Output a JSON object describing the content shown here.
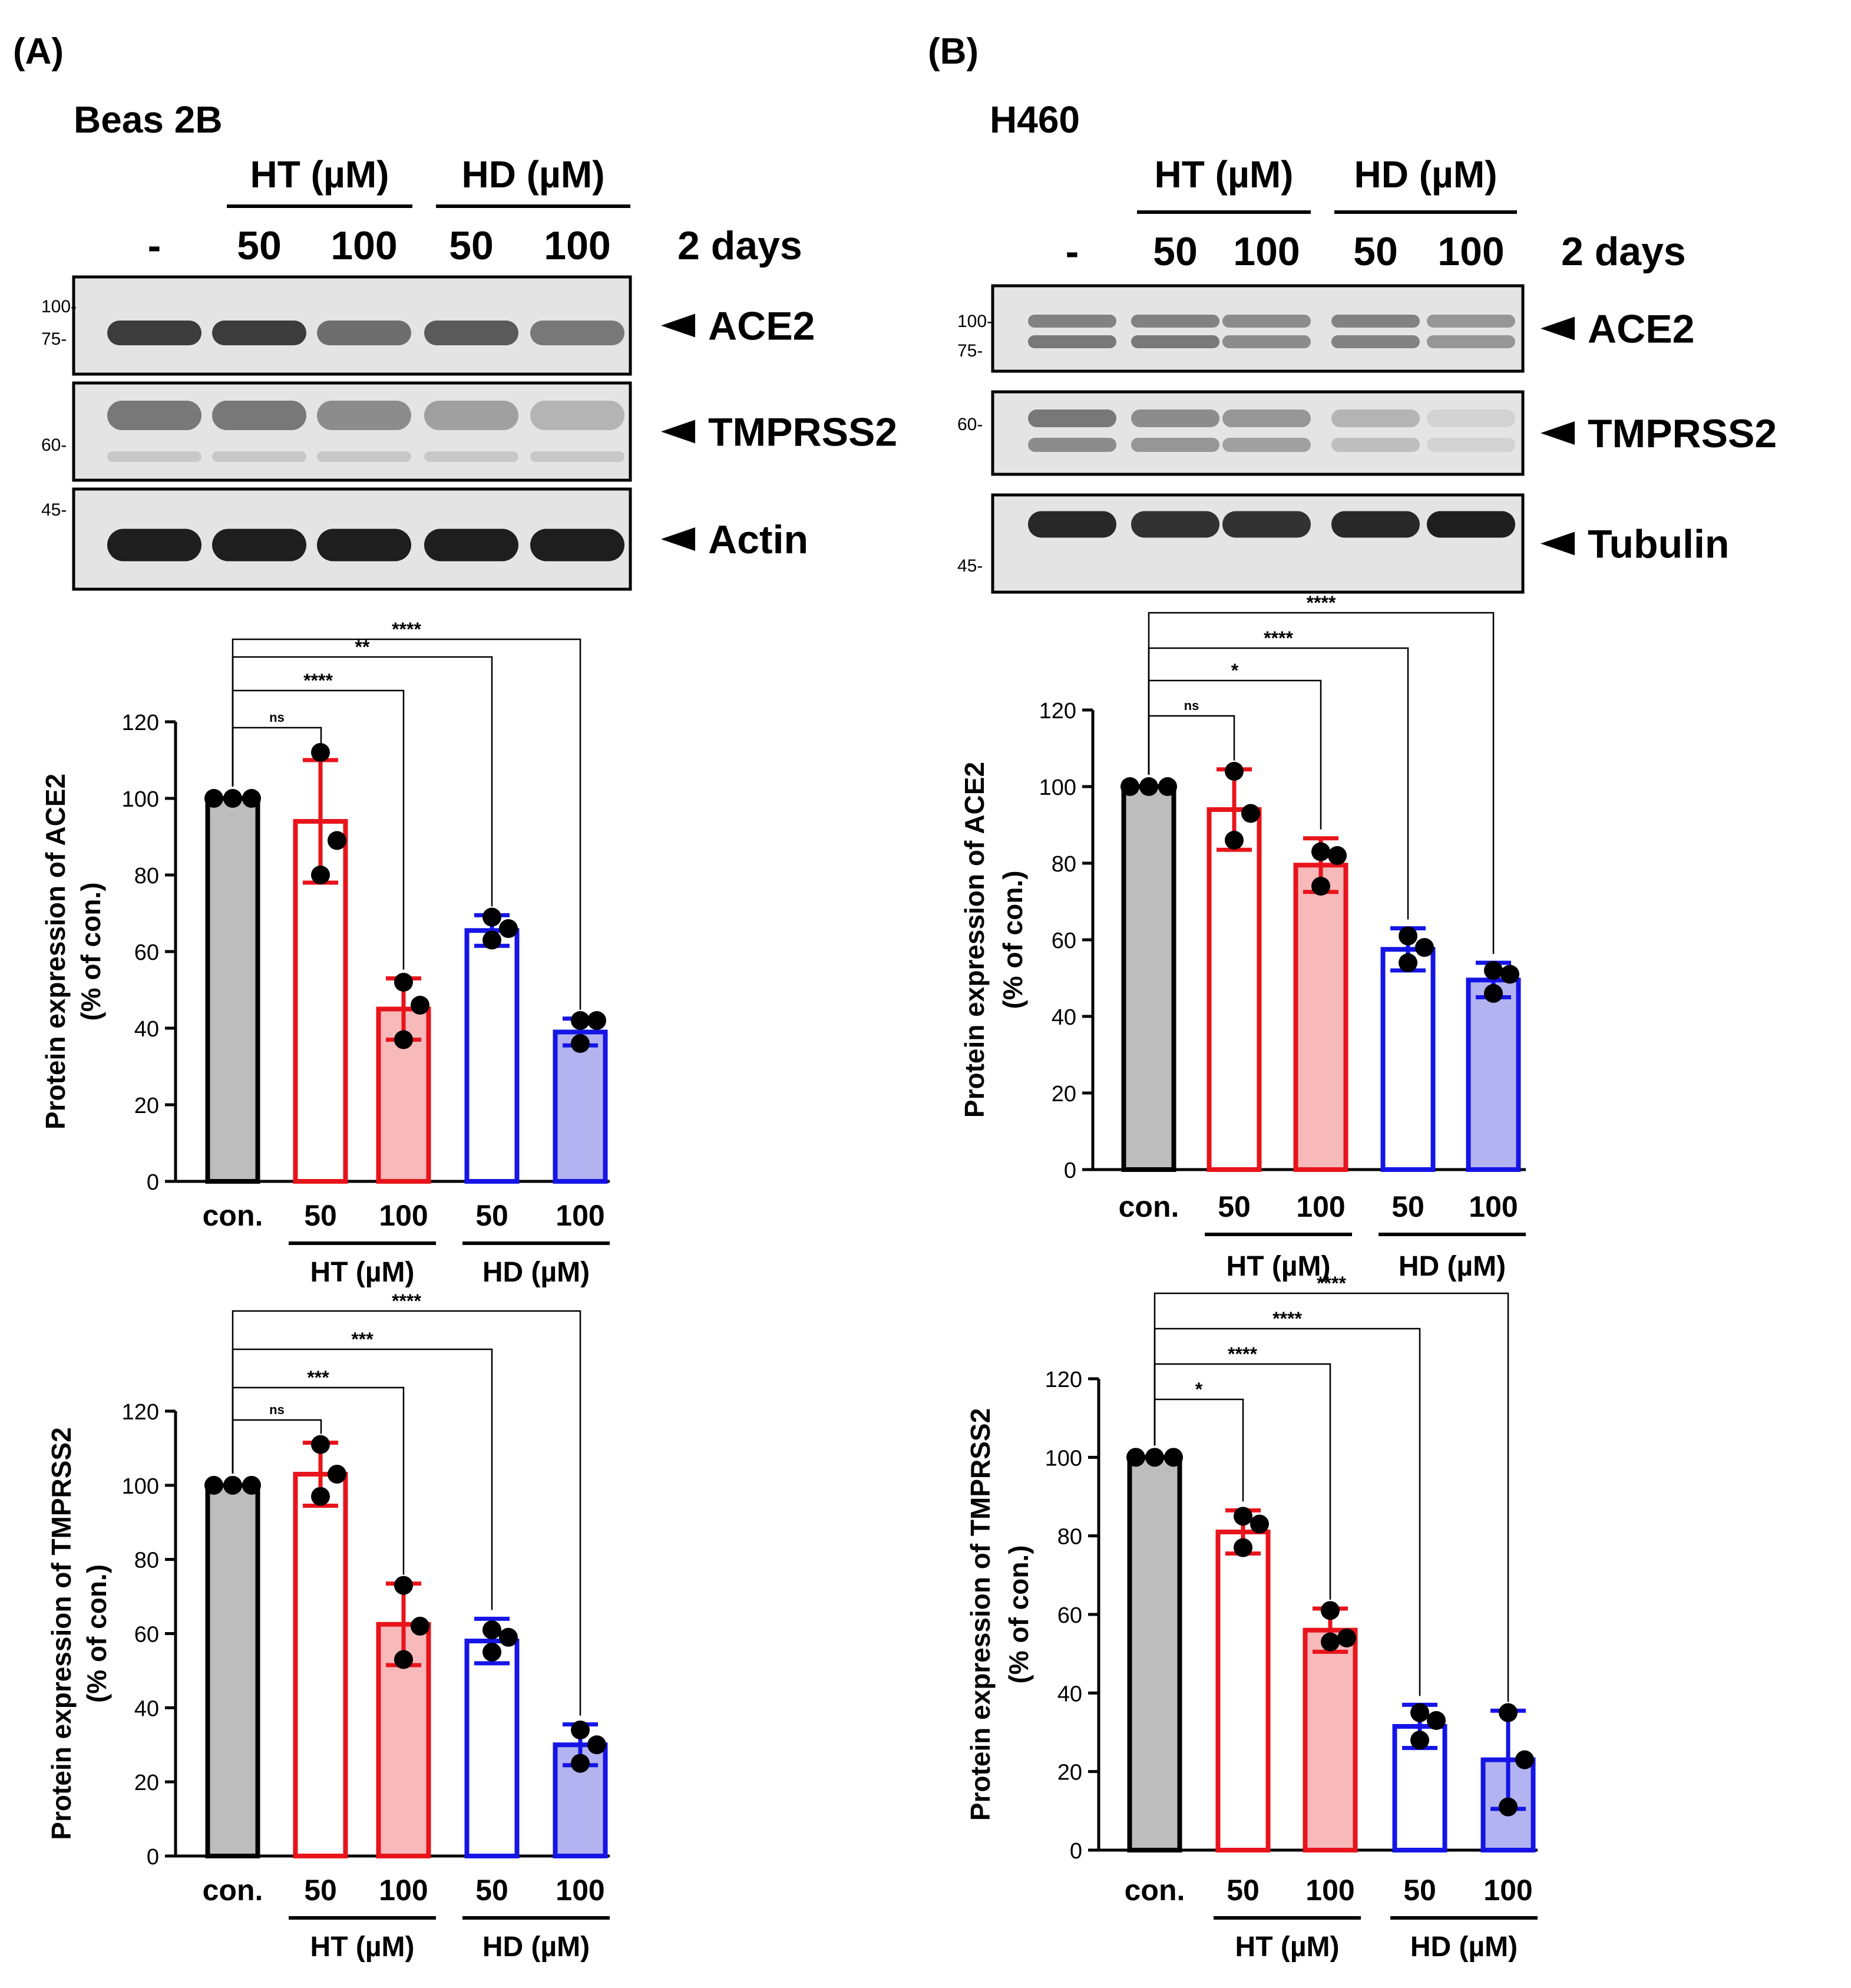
{
  "panels": [
    {
      "id": "A",
      "label": "(A)",
      "cell_line": "Beas 2B",
      "lane_labels": [
        "-",
        "50",
        "100",
        "50",
        "100"
      ],
      "duration": "2 days",
      "group_labels": [
        "HT (µM)",
        "HD (µM)"
      ],
      "blots": [
        {
          "protein": "ACE2",
          "markers": [
            "100-",
            "75-"
          ]
        },
        {
          "protein": "TMPRSS2",
          "markers": [
            "60-"
          ]
        },
        {
          "protein": "Actin",
          "markers": [
            "45-"
          ]
        }
      ]
    },
    {
      "id": "B",
      "label": "(B)",
      "cell_line": "H460",
      "lane_labels": [
        "-",
        "50",
        "100",
        "50",
        "100"
      ],
      "duration": "2 days",
      "group_labels": [
        "HT (µM)",
        "HD (µM)"
      ],
      "blots": [
        {
          "protein": "ACE2",
          "markers": [
            "100-",
            "75-"
          ]
        },
        {
          "protein": "TMPRSS2",
          "markers": [
            "60-"
          ]
        },
        {
          "protein": "Tubulin",
          "markers": [
            "45-"
          ]
        }
      ]
    }
  ],
  "colors": {
    "con_fill": "#bdbdbd",
    "ht": "#e8141b",
    "ht_light_fill": "#f7b9ba",
    "hd": "#1515e6",
    "hd_light_fill": "#b3b3f2",
    "black": "#000000"
  },
  "chart_data": [
    {
      "type": "bar",
      "panel": "A",
      "ylabel_lines": [
        "Protein expression of ACE2",
        "(% of con.)"
      ],
      "categories": [
        "con.",
        "50",
        "100",
        "50",
        "100"
      ],
      "group_labels": [
        "HT (µM)",
        "HD (µM)"
      ],
      "ylim": [
        0,
        120
      ],
      "yticks": [
        0,
        20,
        40,
        60,
        80,
        100,
        120
      ],
      "values": [
        100,
        94,
        45,
        65.5,
        39
      ],
      "errors": [
        0,
        16,
        8,
        4,
        3.5
      ],
      "points": [
        [
          100,
          100,
          100
        ],
        [
          112,
          89,
          80
        ],
        [
          52,
          46,
          37
        ],
        [
          69,
          66,
          63
        ],
        [
          42,
          42,
          36
        ]
      ],
      "significance": [
        "ns",
        "****",
        "**",
        "****"
      ]
    },
    {
      "type": "bar",
      "panel": "A",
      "ylabel_lines": [
        "Protein expression of TMPRSS2",
        "(% of con.)"
      ],
      "categories": [
        "con.",
        "50",
        "100",
        "50",
        "100"
      ],
      "group_labels": [
        "HT (µM)",
        "HD (µM)"
      ],
      "ylim": [
        0,
        120
      ],
      "yticks": [
        0,
        20,
        40,
        60,
        80,
        100,
        120
      ],
      "values": [
        100,
        103,
        62.5,
        58,
        30
      ],
      "errors": [
        0,
        8.5,
        11,
        6,
        5.5
      ],
      "points": [
        [
          100,
          100,
          100
        ],
        [
          111,
          103,
          97
        ],
        [
          73,
          62,
          53
        ],
        [
          61,
          59,
          55
        ],
        [
          34,
          30,
          25
        ]
      ],
      "significance": [
        "ns",
        "***",
        "***",
        "****"
      ]
    },
    {
      "type": "bar",
      "panel": "B",
      "ylabel_lines": [
        "Protein expression of ACE2",
        "(% of con.)"
      ],
      "categories": [
        "con.",
        "50",
        "100",
        "50",
        "100"
      ],
      "group_labels": [
        "HT (µM)",
        "HD (µM)"
      ],
      "ylim": [
        0,
        120
      ],
      "yticks": [
        0,
        20,
        40,
        60,
        80,
        100,
        120
      ],
      "values": [
        100,
        94,
        79.5,
        57.5,
        49.5
      ],
      "errors": [
        0,
        10.5,
        7,
        5.5,
        4.5
      ],
      "points": [
        [
          100,
          100,
          100
        ],
        [
          104,
          93,
          86
        ],
        [
          83,
          82,
          74
        ],
        [
          61,
          58,
          54
        ],
        [
          52,
          51,
          46
        ]
      ],
      "significance": [
        "ns",
        "*",
        "****",
        "****"
      ]
    },
    {
      "type": "bar",
      "panel": "B",
      "ylabel_lines": [
        "Protein expression of TMPRSS2",
        "(% of con.)"
      ],
      "categories": [
        "con.",
        "50",
        "100",
        "50",
        "100"
      ],
      "group_labels": [
        "HT (µM)",
        "HD (µM)"
      ],
      "ylim": [
        0,
        120
      ],
      "yticks": [
        0,
        20,
        40,
        60,
        80,
        100,
        120
      ],
      "values": [
        100,
        81,
        56,
        31.5,
        23
      ],
      "errors": [
        0,
        5.5,
        5.5,
        5.5,
        12.5
      ],
      "points": [
        [
          100,
          100,
          100
        ],
        [
          85,
          83,
          77
        ],
        [
          61,
          54,
          53
        ],
        [
          35,
          33,
          28
        ],
        [
          35,
          23,
          11
        ]
      ],
      "significance": [
        "*",
        "****",
        "****",
        "****"
      ]
    }
  ]
}
